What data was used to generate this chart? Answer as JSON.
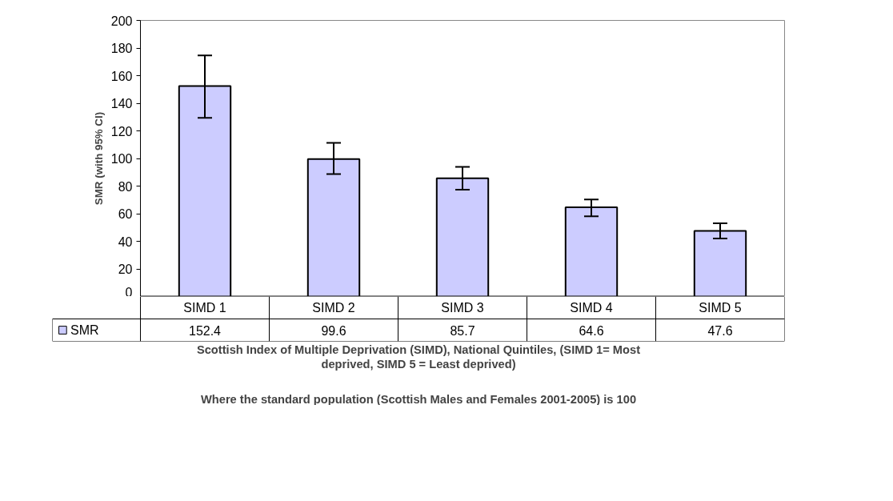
{
  "chart_data": {
    "type": "bar",
    "categories": [
      "SIMD 1",
      "SIMD 2",
      "SIMD 3",
      "SIMD 4",
      "SIMD 5"
    ],
    "series": [
      {
        "name": "SMR",
        "color": "#ccccff",
        "values": [
          152.4,
          99.6,
          85.7,
          64.6,
          47.6
        ],
        "errors": [
          [
            129.4,
            174.6
          ],
          [
            88.7,
            111.3
          ],
          [
            77.4,
            93.9
          ],
          [
            58.1,
            70.3
          ],
          [
            42,
            53
          ]
        ]
      }
    ],
    "ylabel": "SMR (with 95% CI)",
    "xlabel": "Scottish Index of Multiple Deprivation (SIMD), National Quintiles, (SIMD 1= Most deprived, SIMD 5 = Least deprived)",
    "annotations": [
      "Where the standard population (Scottish Males and Females 2001-2005) is 100"
    ],
    "ylim": [
      0,
      200
    ],
    "yticks": [
      0,
      20,
      40,
      60,
      80,
      100,
      120,
      140,
      160,
      180,
      200
    ],
    "data_labels": true,
    "legend": "bottom left",
    "grid": false
  }
}
